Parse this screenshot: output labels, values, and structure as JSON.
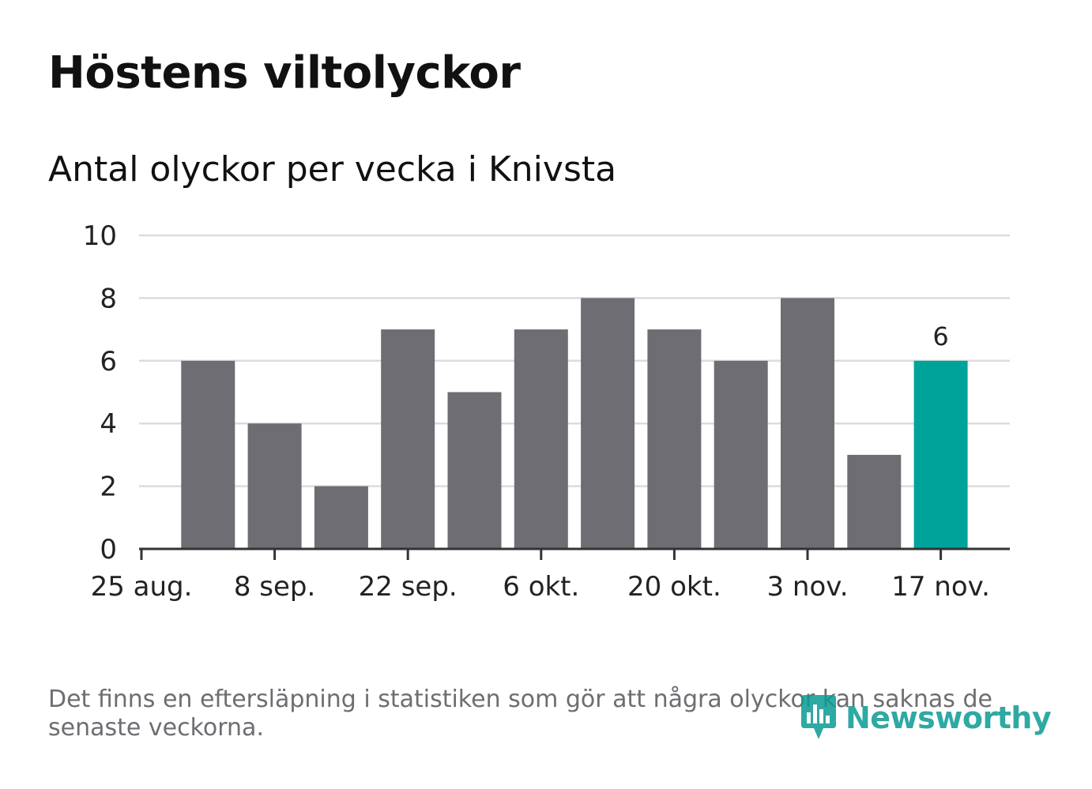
{
  "title": "Höstens viltolyckor",
  "subtitle": "Antal olyckor per vecka i Knivsta",
  "note": "Det finns en eftersläpning i statistiken som gör att några olyckor kan saknas de senaste veckorna.",
  "logo": {
    "text": "Newsworthy",
    "icon": "newsworthy-logo-icon"
  },
  "colors": {
    "bar": "#6e6d73",
    "highlight": "#00a39a",
    "grid": "#dcdcdc",
    "axis": "#333333",
    "logo": "#0a9b94"
  },
  "chart_data": {
    "type": "bar",
    "title": "Höstens viltolyckor",
    "subtitle": "Antal olyckor per vecka i Knivsta",
    "xlabel": "",
    "ylabel": "",
    "ylim": [
      0,
      10
    ],
    "yticks": [
      0,
      2,
      4,
      6,
      8,
      10
    ],
    "x_tick_labels": [
      "25 aug.",
      "8 sep.",
      "22 sep.",
      "6 okt.",
      "20 okt.",
      "3 nov.",
      "17 nov."
    ],
    "values": [
      6,
      4,
      2,
      7,
      5,
      7,
      8,
      7,
      6,
      8,
      3,
      6
    ],
    "highlight_index": 11,
    "highlight_label": "6",
    "grid": true
  }
}
